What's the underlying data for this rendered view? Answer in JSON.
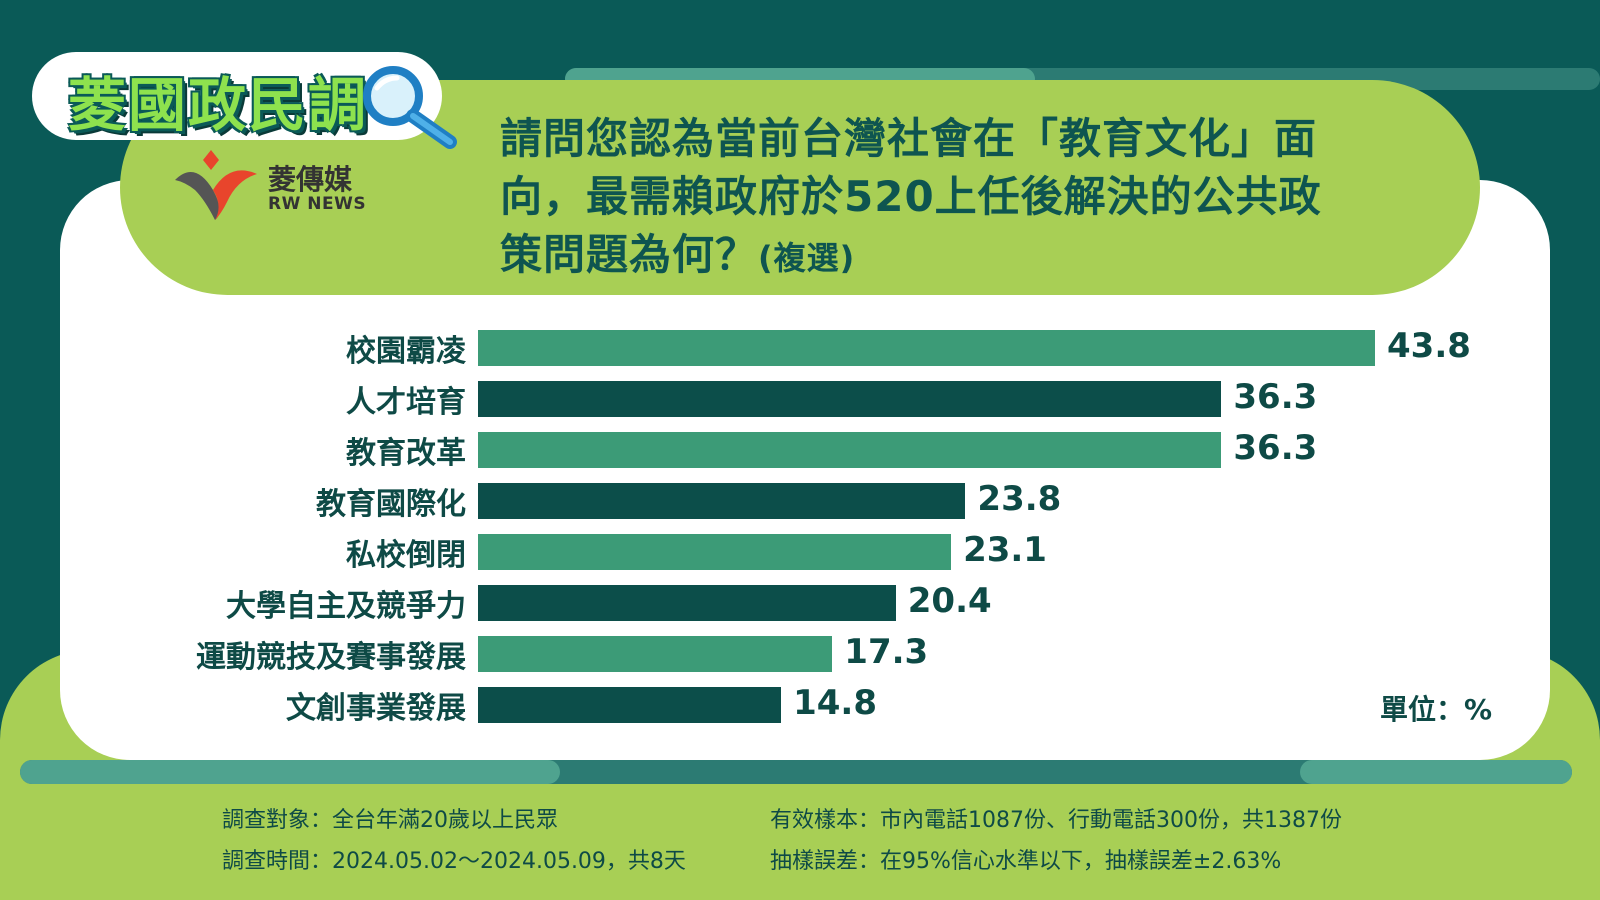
{
  "brand": {
    "badge": "菱國政民調",
    "logo_cn": "菱傳媒",
    "logo_en": "RW NEWS"
  },
  "title_lines": [
    "請問您認為當前台灣社會在「教育文化」面",
    "向，最需賴政府於520上任後解決的公共政",
    "策問題為何？"
  ],
  "title_suffix": "(複選)",
  "unit_label": "單位：%",
  "colors": {
    "light_bar": "#3c9b77",
    "dark_bar": "#0c4e4a"
  },
  "chart_data": {
    "type": "bar",
    "orientation": "horizontal",
    "categories": [
      "校園霸凌",
      "人才培育",
      "教育改革",
      "教育國際化",
      "私校倒閉",
      "大學自主及競爭力",
      "運動競技及賽事發展",
      "文創事業發展"
    ],
    "values": [
      43.8,
      36.3,
      36.3,
      23.8,
      23.1,
      20.4,
      17.3,
      14.8
    ],
    "xlim": [
      0,
      43.8
    ],
    "grid": false
  },
  "footer": {
    "target": "調查對象：全台年滿20歲以上民眾",
    "period": "調查時間：2024.05.02～2024.05.09，共8天",
    "sample": "有效樣本：市內電話1087份、行動電話300份，共1387份",
    "error": "抽樣誤差：在95%信心水準以下，抽樣誤差±2.63%"
  }
}
